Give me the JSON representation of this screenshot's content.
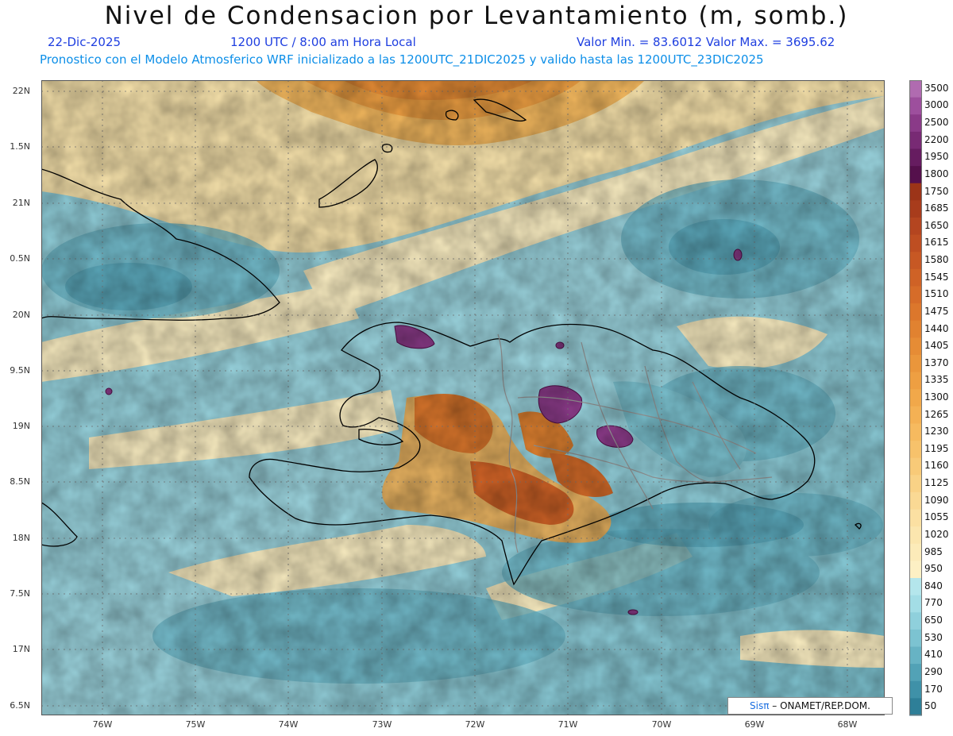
{
  "title": "Nivel de Condensacion por Levantamiento (m, somb.)",
  "date": "22-Dic-2025",
  "time": "1200 UTC / 8:00 am Hora Local",
  "min_max": "Valor Min. = 83.6012   Valor Max. = 3695.62",
  "forecast": "Pronostico con el Modelo Atmosferico WRF inicializado a las 1200UTC_21DIC2025 y valido hasta las  1200UTC_23DIC2025",
  "credit_brand": "Sisπ",
  "credit_org": "– ONAMET/REP.DOM.",
  "lat_labels": [
    "22N",
    "1.5N",
    "21N",
    "0.5N",
    "20N",
    "9.5N",
    "19N",
    "8.5N",
    "18N",
    "7.5N",
    "17N",
    "6.5N"
  ],
  "lon_labels": [
    "76W",
    "75W",
    "74W",
    "73W",
    "72W",
    "71W",
    "70W",
    "69W",
    "68W"
  ],
  "colorbar": {
    "labels": [
      "3500",
      "3000",
      "2500",
      "2200",
      "1950",
      "1800",
      "1750",
      "1685",
      "1650",
      "1615",
      "1580",
      "1545",
      "1510",
      "1475",
      "1440",
      "1405",
      "1370",
      "1335",
      "1300",
      "1265",
      "1230",
      "1195",
      "1160",
      "1125",
      "1090",
      "1055",
      "1020",
      "985",
      "950",
      "840",
      "770",
      "650",
      "530",
      "410",
      "290",
      "170",
      "50"
    ],
    "colors": [
      "#b06bb0",
      "#9d4f9d",
      "#8a3a88",
      "#782a74",
      "#661c60",
      "#55104c",
      "#9c3418",
      "#a83c1c",
      "#b44520",
      "#be4e22",
      "#c75824",
      "#cf6226",
      "#d66c29",
      "#dc772c",
      "#e18230",
      "#e68c35",
      "#ea963b",
      "#ee9f42",
      "#f1a84a",
      "#f4b154",
      "#f6ba5f",
      "#f7c26b",
      "#f8ca78",
      "#f9d286",
      "#fad994",
      "#fbe0a2",
      "#fbe6ae",
      "#fcebb9",
      "#fdf0c4",
      "#b4e6ec",
      "#a3dde6",
      "#8fd0dc",
      "#7cc3d1",
      "#67b3c4",
      "#52a2b6",
      "#3f91a8",
      "#2e7f98"
    ]
  }
}
